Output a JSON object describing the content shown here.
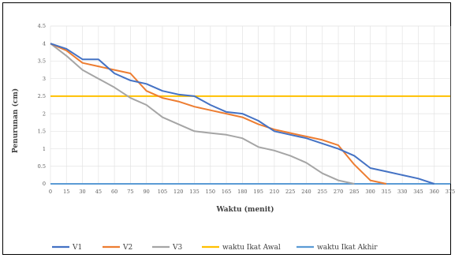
{
  "chart_data": {
    "type": "line",
    "title": "",
    "xlabel": "Waktu (menit)",
    "ylabel": "Penurunan (cm)",
    "x": [
      0,
      15,
      30,
      45,
      60,
      75,
      90,
      105,
      120,
      135,
      150,
      165,
      180,
      195,
      210,
      225,
      240,
      255,
      270,
      285,
      300,
      315,
      330,
      345,
      360,
      375
    ],
    "x_ticks": [
      "0",
      "15",
      "30",
      "45",
      "60",
      "75",
      "90",
      "105",
      "120",
      "135",
      "150",
      "165",
      "180",
      "195",
      "210",
      "225",
      "240",
      "255",
      "270",
      "285",
      "300",
      "315",
      "330",
      "345",
      "360",
      "375"
    ],
    "y_ticks": [
      "0",
      "0.5",
      "1",
      "1.5",
      "2",
      "2.5",
      "3",
      "3.5",
      "4",
      "4.5"
    ],
    "xlim": [
      0,
      375
    ],
    "ylim": [
      0,
      4.5
    ],
    "grid": true,
    "legend_position": "bottom",
    "series": [
      {
        "name": "V1",
        "color": "#4472C4",
        "points": [
          [
            0,
            4
          ],
          [
            15,
            3.85
          ],
          [
            30,
            3.55
          ],
          [
            45,
            3.55
          ],
          [
            60,
            3.15
          ],
          [
            75,
            2.95
          ],
          [
            90,
            2.85
          ],
          [
            105,
            2.65
          ],
          [
            120,
            2.55
          ],
          [
            135,
            2.5
          ],
          [
            150,
            2.25
          ],
          [
            165,
            2.05
          ],
          [
            180,
            2.0
          ],
          [
            195,
            1.8
          ],
          [
            210,
            1.5
          ],
          [
            225,
            1.4
          ],
          [
            240,
            1.3
          ],
          [
            255,
            1.15
          ],
          [
            270,
            1.0
          ],
          [
            285,
            0.8
          ],
          [
            300,
            0.45
          ],
          [
            315,
            0.35
          ],
          [
            330,
            0.25
          ],
          [
            345,
            0.15
          ],
          [
            360,
            0.0
          ]
        ]
      },
      {
        "name": "V2",
        "color": "#ED7D31",
        "points": [
          [
            0,
            4
          ],
          [
            15,
            3.8
          ],
          [
            30,
            3.45
          ],
          [
            45,
            3.35
          ],
          [
            60,
            3.25
          ],
          [
            75,
            3.15
          ],
          [
            90,
            2.65
          ],
          [
            105,
            2.45
          ],
          [
            120,
            2.35
          ],
          [
            135,
            2.2
          ],
          [
            150,
            2.1
          ],
          [
            165,
            2.0
          ],
          [
            180,
            1.9
          ],
          [
            195,
            1.7
          ],
          [
            210,
            1.55
          ],
          [
            225,
            1.45
          ],
          [
            240,
            1.35
          ],
          [
            255,
            1.25
          ],
          [
            270,
            1.1
          ],
          [
            285,
            0.55
          ],
          [
            300,
            0.1
          ],
          [
            315,
            0.0
          ]
        ]
      },
      {
        "name": "V3",
        "color": "#A5A5A5",
        "points": [
          [
            0,
            4
          ],
          [
            15,
            3.65
          ],
          [
            30,
            3.25
          ],
          [
            45,
            3.0
          ],
          [
            60,
            2.75
          ],
          [
            75,
            2.45
          ],
          [
            90,
            2.25
          ],
          [
            105,
            1.9
          ],
          [
            120,
            1.7
          ],
          [
            135,
            1.5
          ],
          [
            150,
            1.45
          ],
          [
            165,
            1.4
          ],
          [
            180,
            1.3
          ],
          [
            195,
            1.05
          ],
          [
            210,
            0.95
          ],
          [
            225,
            0.8
          ],
          [
            240,
            0.6
          ],
          [
            255,
            0.3
          ],
          [
            270,
            0.1
          ],
          [
            285,
            0.0
          ]
        ]
      },
      {
        "name": "waktu Ikat Awal",
        "color": "#FFC000",
        "points": [
          [
            0,
            2.5
          ],
          [
            375,
            2.5
          ]
        ]
      },
      {
        "name": "waktu Ikat Akhir",
        "color": "#5B9BD5",
        "points": [
          [
            0,
            0
          ],
          [
            375,
            0
          ]
        ]
      }
    ]
  }
}
